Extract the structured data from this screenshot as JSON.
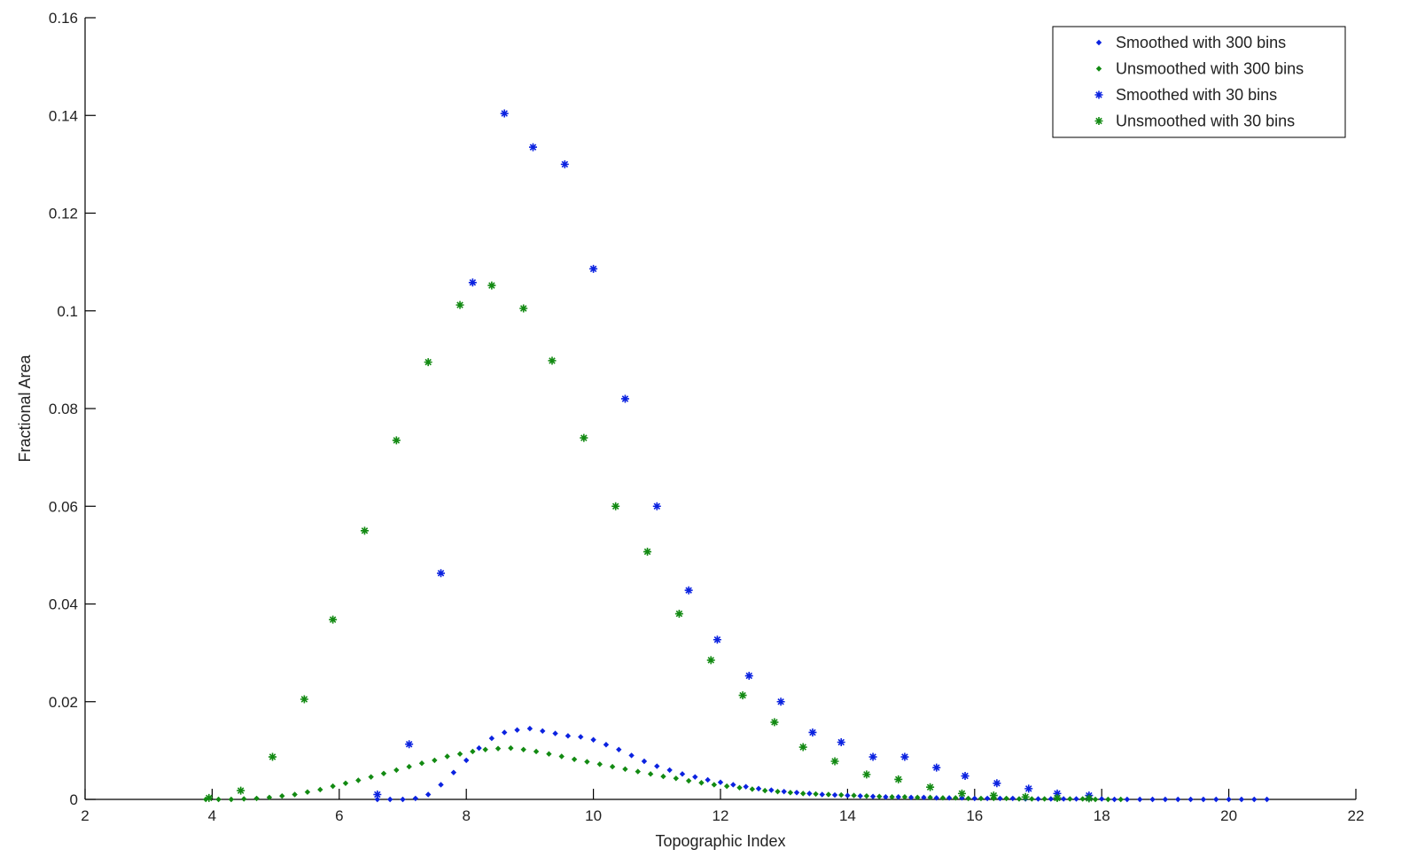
{
  "chart_data": {
    "type": "scatter",
    "title": "",
    "xlabel": "Topographic Index",
    "ylabel": "Fractional Area",
    "xlim": [
      2,
      22
    ],
    "ylim": [
      0,
      0.16
    ],
    "xticks": [
      2,
      4,
      6,
      8,
      10,
      12,
      14,
      16,
      18,
      20,
      22
    ],
    "yticks": [
      0,
      0.02,
      0.04,
      0.06,
      0.08,
      0.1,
      0.12,
      0.14,
      0.16
    ],
    "xtick_labels": [
      "2",
      "4",
      "6",
      "8",
      "10",
      "12",
      "14",
      "16",
      "18",
      "20",
      "22"
    ],
    "ytick_labels": [
      "0",
      "0.02",
      "0.04",
      "0.06",
      "0.08",
      "0.1",
      "0.12",
      "0.14",
      "0.16"
    ],
    "grid": false,
    "legend_position": "top-right",
    "colors": {
      "blue": "#0b22e0",
      "green": "#128a12"
    },
    "series": [
      {
        "name": "Smoothed with 300 bins",
        "marker": "dot",
        "color": "#0b22e0",
        "x": [
          6.6,
          6.8,
          7.0,
          7.2,
          7.4,
          7.6,
          7.8,
          8.0,
          8.2,
          8.4,
          8.6,
          8.8,
          9.0,
          9.2,
          9.4,
          9.6,
          9.8,
          10.0,
          10.2,
          10.4,
          10.6,
          10.8,
          11.0,
          11.2,
          11.4,
          11.6,
          11.8,
          12.0,
          12.2,
          12.4,
          12.6,
          12.8,
          13.0,
          13.2,
          13.4,
          13.6,
          13.8,
          14.0,
          14.2,
          14.4,
          14.6,
          14.8,
          15.0,
          15.2,
          15.4,
          15.6,
          15.8,
          16.0,
          16.2,
          16.4,
          16.6,
          16.8,
          17.0,
          17.2,
          17.4,
          17.6,
          17.8,
          18.0,
          18.2,
          18.4,
          18.6,
          18.8,
          19.0,
          19.2,
          19.4,
          19.6,
          19.8,
          20.0,
          20.2,
          20.4,
          20.6
        ],
        "y": [
          0.0,
          0.0,
          0.0,
          0.0002,
          0.001,
          0.003,
          0.0055,
          0.008,
          0.0105,
          0.0125,
          0.0137,
          0.0142,
          0.0145,
          0.014,
          0.0135,
          0.013,
          0.0128,
          0.0122,
          0.0112,
          0.0102,
          0.009,
          0.0078,
          0.0068,
          0.006,
          0.0052,
          0.0046,
          0.004,
          0.0035,
          0.003,
          0.0026,
          0.0022,
          0.0019,
          0.0016,
          0.0014,
          0.0012,
          0.001,
          0.0009,
          0.0008,
          0.0007,
          0.0006,
          0.0005,
          0.0005,
          0.0004,
          0.0004,
          0.0003,
          0.0003,
          0.0003,
          0.0002,
          0.0002,
          0.0002,
          0.0002,
          0.0001,
          0.0001,
          0.0001,
          0.0001,
          0.0001,
          0.0001,
          0.0001,
          0.0,
          0.0,
          0.0,
          0.0,
          0.0,
          0.0,
          0.0,
          0.0,
          0.0,
          0.0,
          0.0,
          0.0,
          0.0
        ]
      },
      {
        "name": "Unsmoothed with 300 bins",
        "marker": "dot",
        "color": "#128a12",
        "x": [
          3.9,
          4.1,
          4.3,
          4.5,
          4.7,
          4.9,
          5.1,
          5.3,
          5.5,
          5.7,
          5.9,
          6.1,
          6.3,
          6.5,
          6.7,
          6.9,
          7.1,
          7.3,
          7.5,
          7.7,
          7.9,
          8.1,
          8.3,
          8.5,
          8.7,
          8.9,
          9.1,
          9.3,
          9.5,
          9.7,
          9.9,
          10.1,
          10.3,
          10.5,
          10.7,
          10.9,
          11.1,
          11.3,
          11.5,
          11.7,
          11.9,
          12.1,
          12.3,
          12.5,
          12.7,
          12.9,
          13.1,
          13.3,
          13.5,
          13.7,
          13.9,
          14.1,
          14.3,
          14.5,
          14.7,
          14.9,
          15.1,
          15.3,
          15.5,
          15.7,
          15.9,
          16.1,
          16.3,
          16.5,
          16.7,
          16.9,
          17.1,
          17.3,
          17.5,
          17.7,
          17.9,
          18.1,
          18.3
        ],
        "y": [
          0.0,
          0.0,
          0.0,
          0.0001,
          0.0002,
          0.0004,
          0.0007,
          0.001,
          0.0015,
          0.002,
          0.0027,
          0.0033,
          0.0039,
          0.0046,
          0.0053,
          0.006,
          0.0067,
          0.0074,
          0.008,
          0.0088,
          0.0093,
          0.0098,
          0.0102,
          0.0104,
          0.0105,
          0.0102,
          0.0098,
          0.0093,
          0.0088,
          0.0082,
          0.0077,
          0.0072,
          0.0067,
          0.0062,
          0.0057,
          0.0052,
          0.0047,
          0.0043,
          0.0038,
          0.0034,
          0.003,
          0.0027,
          0.0024,
          0.0021,
          0.0018,
          0.0016,
          0.0014,
          0.0012,
          0.0011,
          0.001,
          0.0009,
          0.0008,
          0.0007,
          0.0006,
          0.0005,
          0.0005,
          0.0004,
          0.0004,
          0.0003,
          0.0003,
          0.0002,
          0.0002,
          0.0002,
          0.0002,
          0.0001,
          0.0001,
          0.0001,
          0.0001,
          0.0001,
          0.0001,
          0.0,
          0.0,
          0.0
        ]
      },
      {
        "name": "Smoothed with 30 bins",
        "marker": "star",
        "color": "#0b22e0",
        "x": [
          6.6,
          7.1,
          7.6,
          8.1,
          8.6,
          9.05,
          9.55,
          10.0,
          10.5,
          11.0,
          11.5,
          11.95,
          12.45,
          12.95,
          13.45,
          13.9,
          14.4,
          14.9,
          15.4,
          15.85,
          16.35,
          16.85,
          17.3,
          17.8
        ],
        "y": [
          0.001,
          0.0113,
          0.0463,
          0.1058,
          0.1404,
          0.1335,
          0.13,
          0.1086,
          0.082,
          0.06,
          0.0428,
          0.0327,
          0.0253,
          0.02,
          0.0137,
          0.0117,
          0.0087,
          0.0087,
          0.0065,
          0.0048,
          0.0033,
          0.0022,
          0.0012,
          0.0008
        ]
      },
      {
        "name": "Unsmoothed with 30 bins",
        "marker": "star",
        "color": "#128a12",
        "x": [
          3.95,
          4.45,
          4.95,
          5.45,
          5.9,
          6.4,
          6.9,
          7.4,
          7.9,
          8.4,
          8.9,
          9.35,
          9.85,
          10.35,
          10.85,
          11.35,
          11.85,
          12.35,
          12.85,
          13.3,
          13.8,
          14.3,
          14.8,
          15.3,
          15.8,
          16.3,
          16.8,
          17.3,
          17.8
        ],
        "y": [
          0.0003,
          0.0018,
          0.0087,
          0.0205,
          0.0368,
          0.055,
          0.0735,
          0.0895,
          0.1012,
          0.1052,
          0.1005,
          0.0898,
          0.074,
          0.06,
          0.0507,
          0.038,
          0.0285,
          0.0213,
          0.0158,
          0.0107,
          0.0078,
          0.0051,
          0.0041,
          0.0025,
          0.0012,
          0.0008,
          0.0005,
          0.0003,
          0.0002
        ]
      }
    ]
  }
}
